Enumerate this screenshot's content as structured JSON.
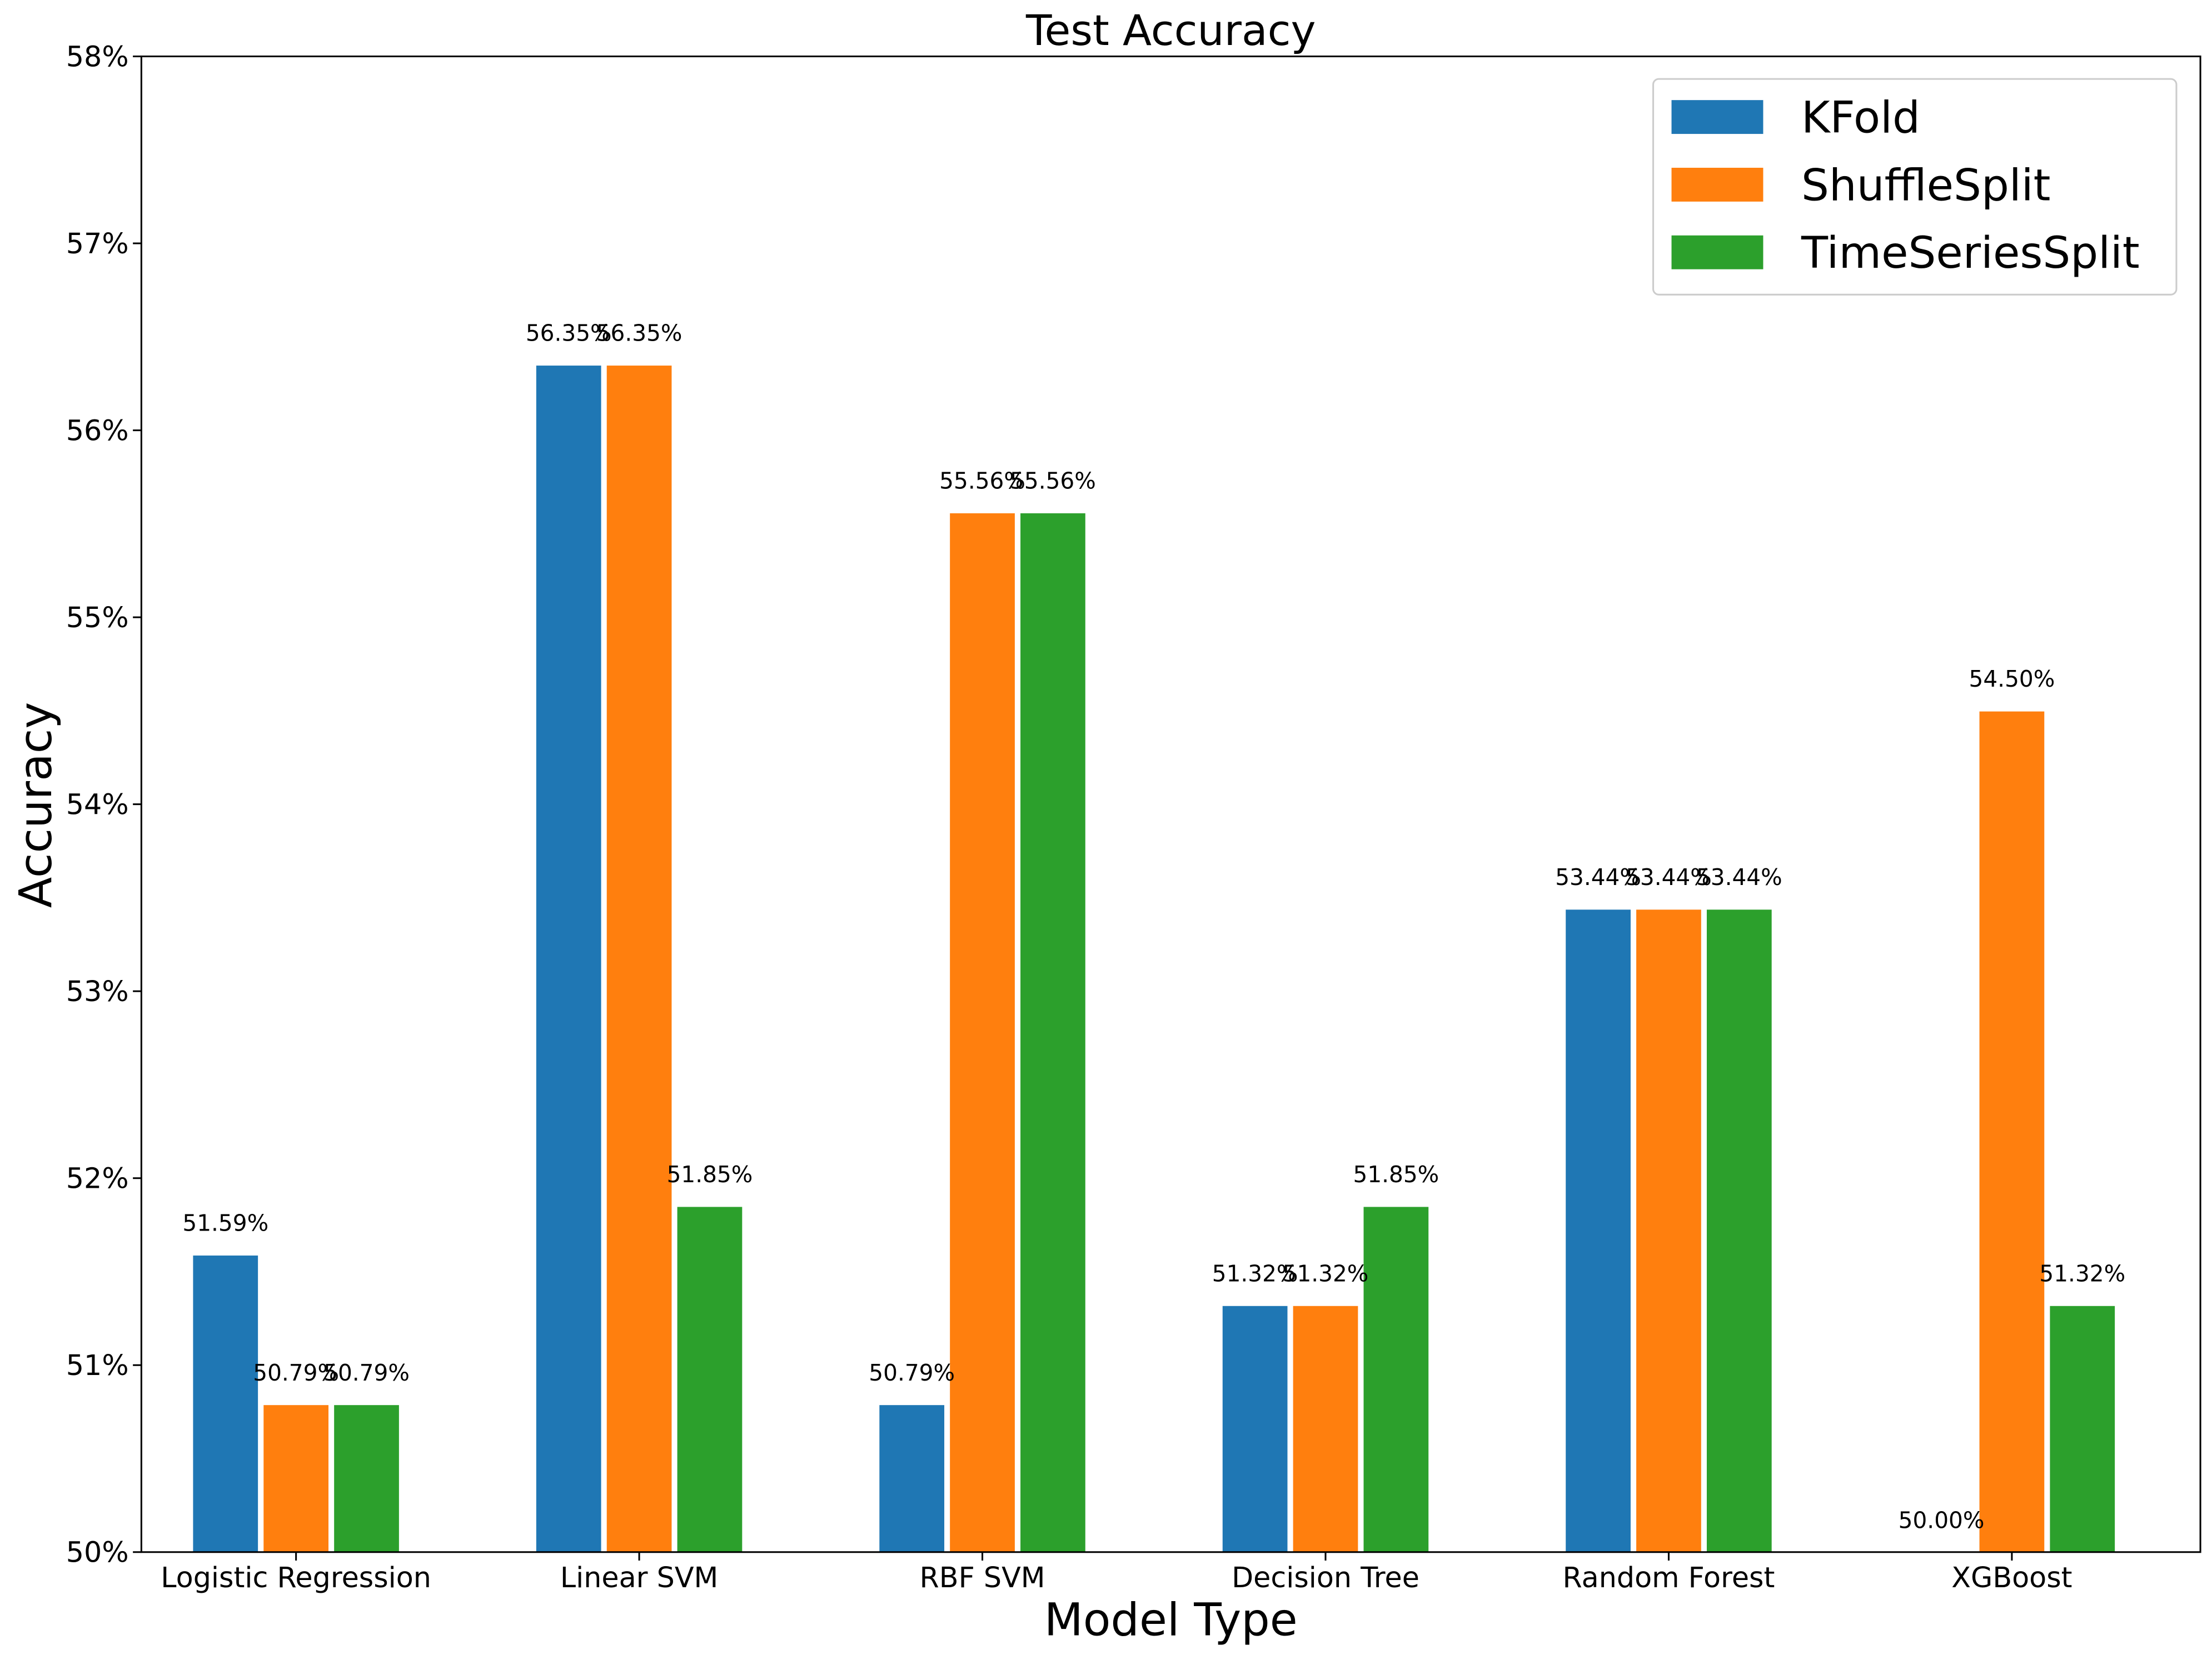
{
  "chart_data": {
    "type": "bar",
    "title": "Test Accuracy",
    "xlabel": "Model Type",
    "ylabel": "Accuracy",
    "ylim": [
      50,
      58
    ],
    "yticks": [
      "50%",
      "51%",
      "52%",
      "53%",
      "54%",
      "55%",
      "56%",
      "57%",
      "58%"
    ],
    "grid": false,
    "legend_position": "top-right",
    "categories": [
      "Logistic Regression",
      "Linear SVM",
      "RBF SVM",
      "Decision Tree",
      "Random Forest",
      "XGBoost"
    ],
    "series": [
      {
        "name": "KFold",
        "color": "#1f77b4",
        "values": [
          51.59,
          56.35,
          50.79,
          51.32,
          53.44,
          50.0
        ],
        "labels": [
          "51.59%",
          "56.35%",
          "50.79%",
          "51.32%",
          "53.44%",
          "50.00%"
        ]
      },
      {
        "name": "ShuffleSplit",
        "color": "#ff7f0e",
        "values": [
          50.79,
          56.35,
          55.56,
          51.32,
          53.44,
          54.5
        ],
        "labels": [
          "50.79%",
          "56.35%",
          "55.56%",
          "51.32%",
          "53.44%",
          "54.50%"
        ]
      },
      {
        "name": "TimeSeriesSplit",
        "color": "#2ca02c",
        "values": [
          50.79,
          51.85,
          55.56,
          51.85,
          53.44,
          51.32
        ],
        "labels": [
          "50.79%",
          "51.85%",
          "55.56%",
          "51.85%",
          "53.44%",
          "51.32%"
        ]
      }
    ]
  }
}
